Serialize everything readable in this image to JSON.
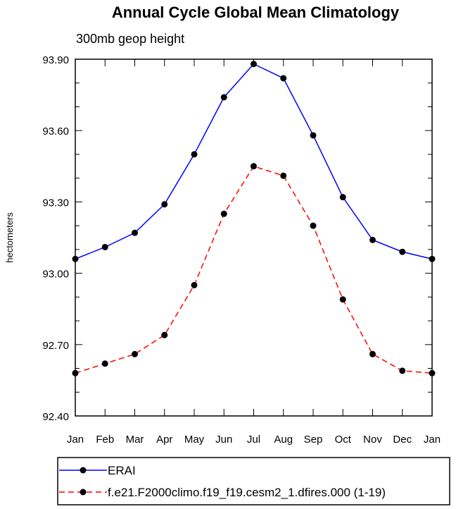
{
  "chart_data": {
    "type": "line",
    "title": "Annual Cycle Global Mean Climatology",
    "subtitle": "300mb geop height",
    "ylabel": "hectometers",
    "xlabel": "",
    "categories": [
      "Jan",
      "Feb",
      "Mar",
      "Apr",
      "May",
      "Jun",
      "Jul",
      "Aug",
      "Sep",
      "Oct",
      "Nov",
      "Dec",
      "Jan"
    ],
    "ylim": [
      92.4,
      93.9
    ],
    "yticks": [
      "92.40",
      "92.70",
      "93.00",
      "93.30",
      "93.60",
      "93.90"
    ],
    "series": [
      {
        "name": "ERAI",
        "color": "#0000ff",
        "dash": "solid",
        "values": [
          93.06,
          93.11,
          93.17,
          93.29,
          93.5,
          93.74,
          93.88,
          93.82,
          93.58,
          93.32,
          93.14,
          93.09,
          93.06
        ]
      },
      {
        "name": "f.e21.F2000climo.f19_f19.cesm2_1.dfires.000 (1-19)",
        "color": "#ff0000",
        "dash": "dashed",
        "values": [
          92.58,
          92.62,
          92.66,
          92.74,
          92.95,
          93.25,
          93.45,
          93.41,
          93.2,
          92.89,
          92.66,
          92.59,
          92.58
        ]
      }
    ],
    "grid": false,
    "legend_position": "bottom"
  }
}
